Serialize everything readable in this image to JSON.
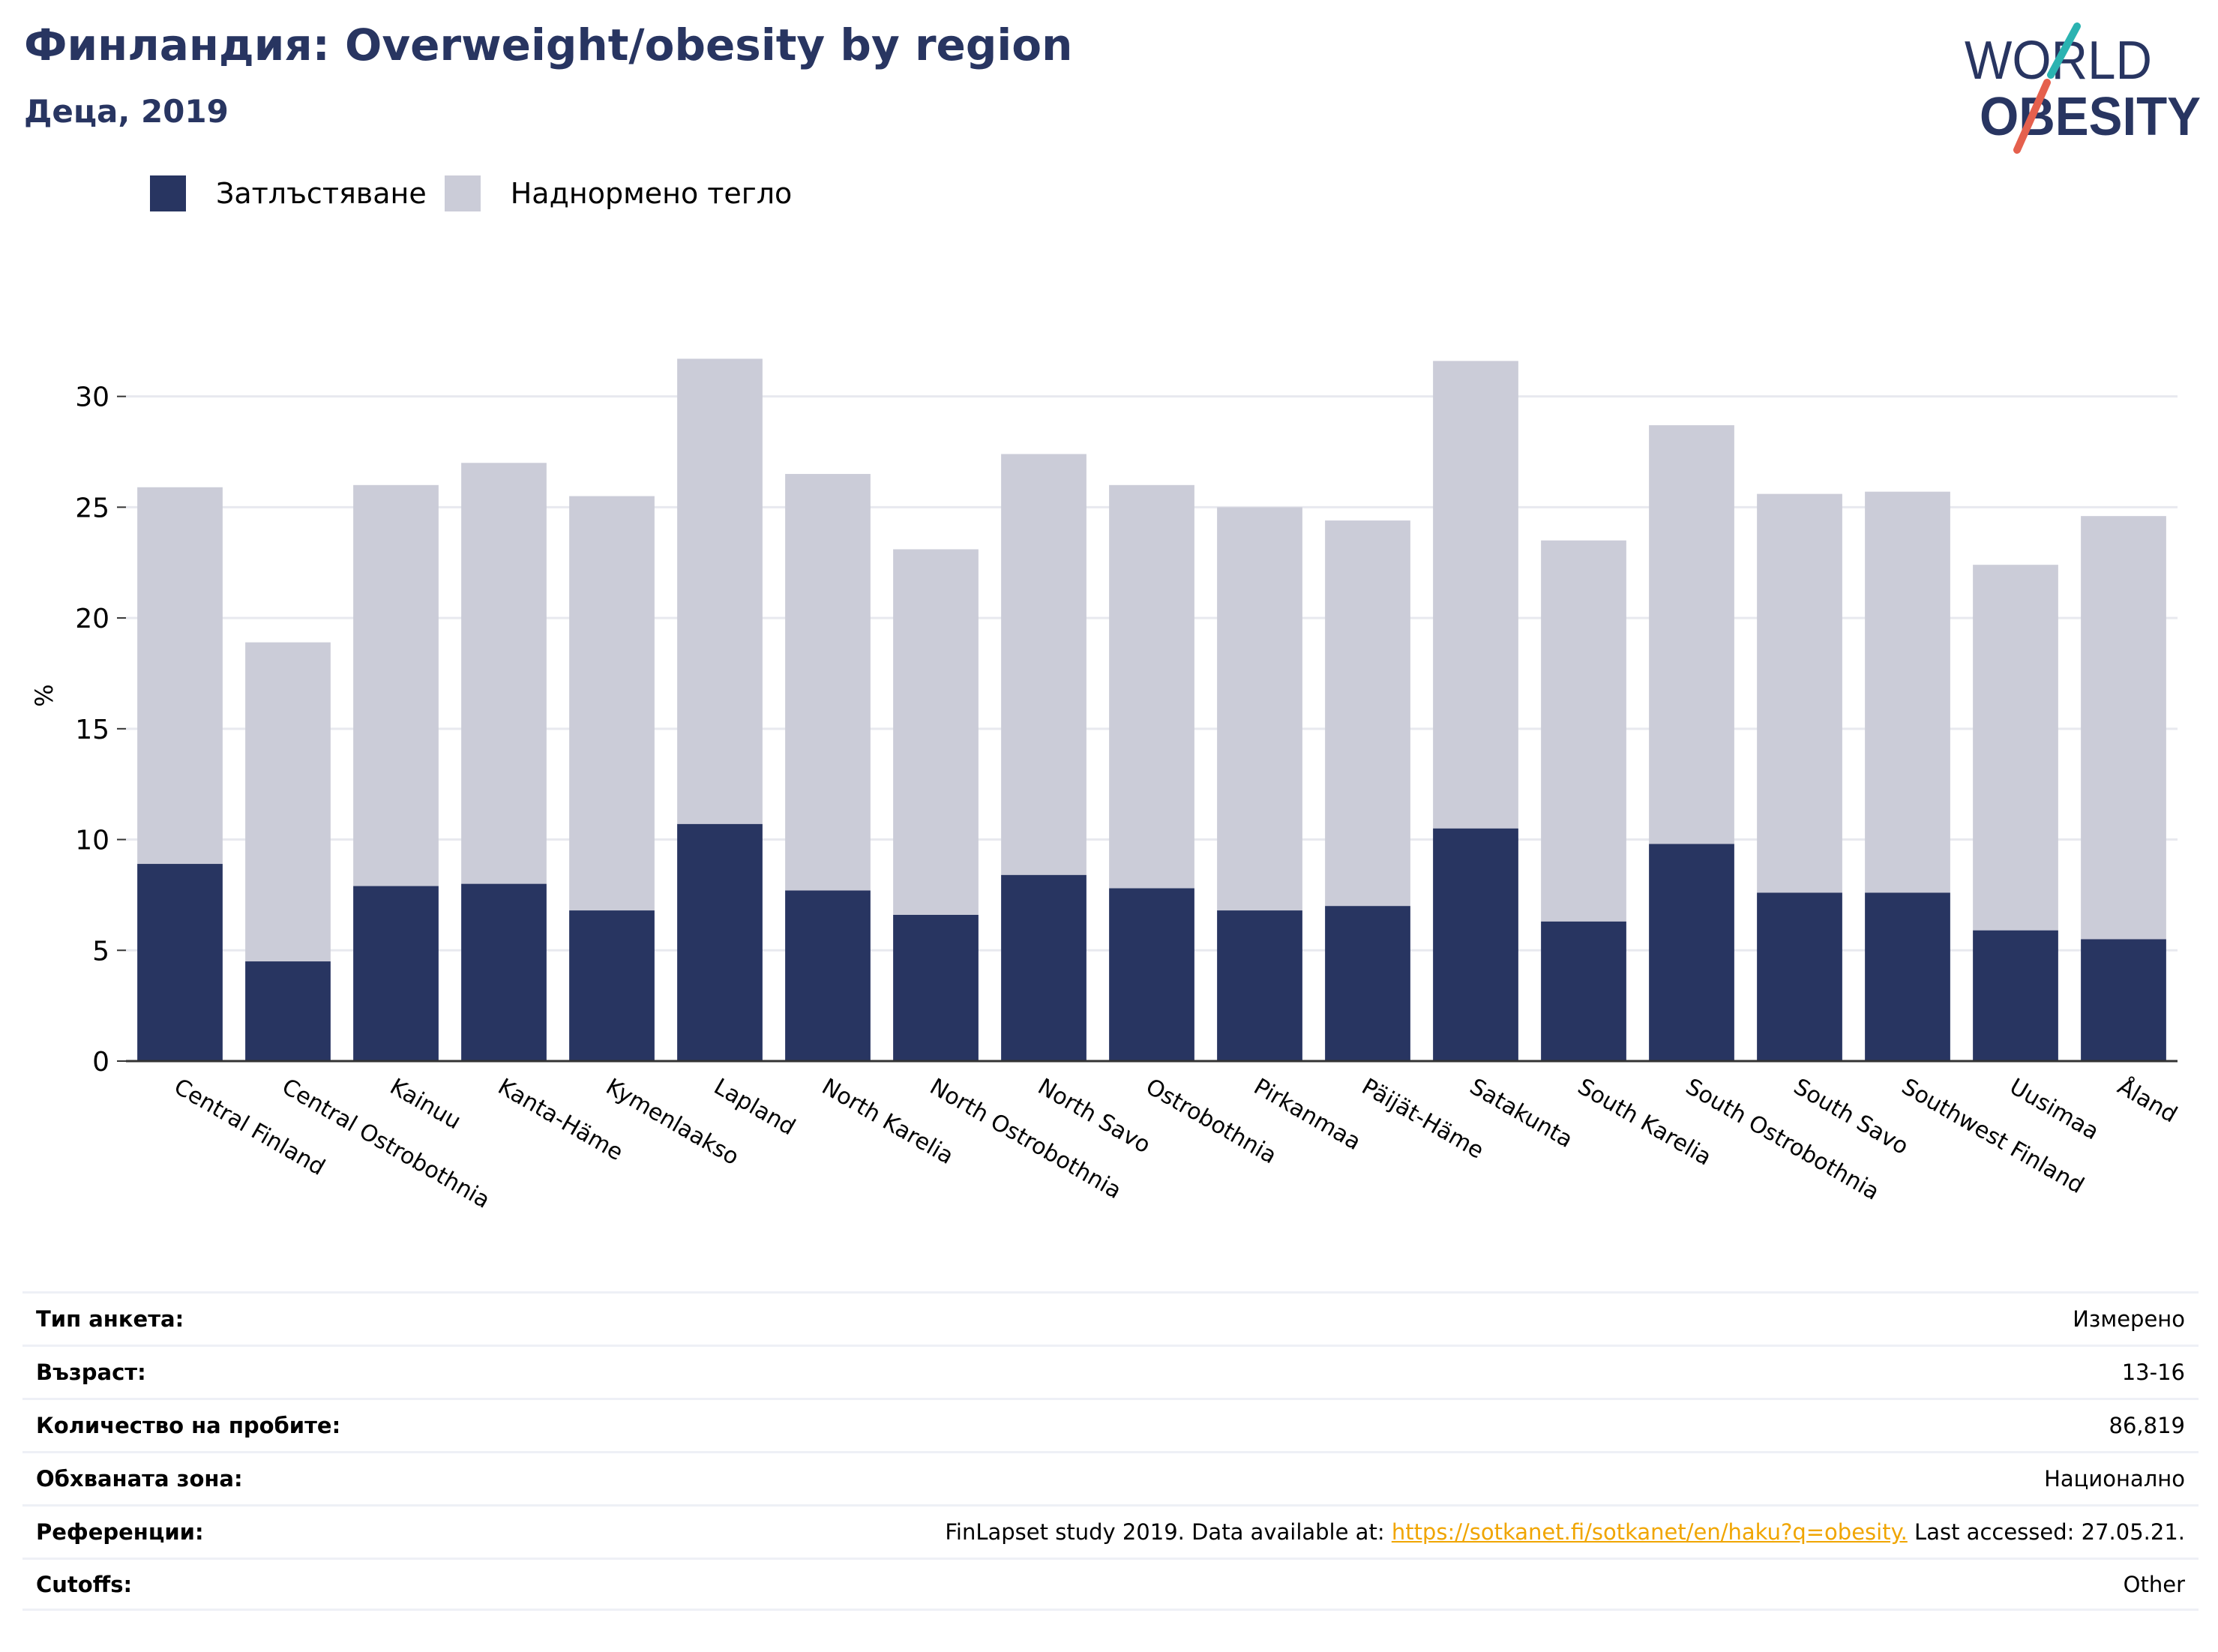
{
  "header": {
    "title": "Финландия: Overweight/obesity by region",
    "subtitle": "Деца, 2019"
  },
  "logo": {
    "line1": "WORLD",
    "line2": "OBESITY"
  },
  "colors": {
    "obesity": "#283561",
    "overweight": "#cbccd8",
    "title": "#283561",
    "link": "#f0a500",
    "grid": "#e8e9ef",
    "axis": "#333333"
  },
  "legend": [
    {
      "label": "Затлъстяване",
      "color": "#283561"
    },
    {
      "label": "Наднормено тегло",
      "color": "#cbccd8"
    }
  ],
  "chart_data": {
    "type": "bar",
    "stacked": true,
    "ylabel": "%",
    "ylim": [
      0,
      33
    ],
    "yticks": [
      0,
      5,
      10,
      15,
      20,
      25,
      30
    ],
    "grid": true,
    "legend_position": "top-left",
    "categories": [
      "Central Finland",
      "Central Ostrobothnia",
      "Kainuu",
      "Kanta-Häme",
      "Kymenlaakso",
      "Lapland",
      "North Karelia",
      "North Ostrobothnia",
      "North Savo",
      "Ostrobothnia",
      "Pirkanmaa",
      "Päijät-Häme",
      "Satakunta",
      "South Karelia",
      "South Ostrobothnia",
      "South Savo",
      "Southwest Finland",
      "Uusimaa",
      "Åland"
    ],
    "series": [
      {
        "name": "Затлъстяване",
        "values": [
          8.9,
          4.5,
          7.9,
          8.0,
          6.8,
          10.7,
          7.7,
          6.6,
          8.4,
          7.8,
          6.8,
          7.0,
          10.5,
          6.3,
          9.8,
          7.6,
          7.6,
          5.9,
          5.5
        ]
      },
      {
        "name": "Наднормено тегло",
        "values": [
          17.0,
          14.4,
          18.1,
          19.0,
          18.7,
          21.0,
          18.8,
          16.5,
          19.0,
          18.2,
          18.2,
          17.4,
          21.1,
          17.2,
          18.9,
          18.0,
          18.1,
          16.5,
          19.1
        ]
      }
    ]
  },
  "meta": [
    {
      "label": "Тип анкета:",
      "value": "Измерено"
    },
    {
      "label": "Възраст:",
      "value": "13-16"
    },
    {
      "label": "Количество на пробите:",
      "value": "86,819"
    },
    {
      "label": "Обхваната зона:",
      "value": "Национално"
    },
    {
      "label": "Референции:",
      "value_prefix": "FinLapset study 2019. Data available at: ",
      "link": "https://sotkanet.fi/sotkanet/en/haku?q=obesity.",
      "value_suffix": " Last accessed: 27.05.21."
    },
    {
      "label": "Cutoffs:",
      "value": "Other"
    }
  ]
}
